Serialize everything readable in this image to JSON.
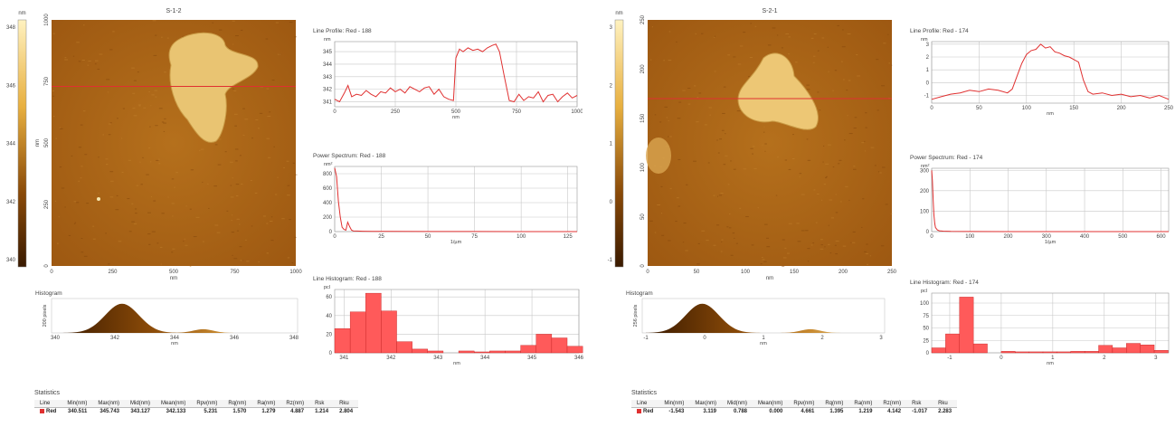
{
  "colors": {
    "profile": "#e03030",
    "histogram_bar": "#ff5a5a",
    "afm_dark": "#3a1a00",
    "afm_light": "#fff2c0",
    "grid": "#c8c8c8"
  },
  "panels": [
    {
      "image": {
        "title": "S-1-2",
        "x_unit": "nm",
        "y_unit": "nm",
        "x_ticks": [
          "0",
          "250",
          "500",
          "750",
          "1000"
        ],
        "y_ticks": [
          "0",
          "250",
          "500",
          "750",
          "1000"
        ],
        "line_fraction": 0.27
      },
      "colorbar": {
        "unit": "nm",
        "ticks": [
          "348",
          "346",
          "344",
          "342",
          "340"
        ]
      },
      "histogram": {
        "title": "Histogram",
        "y_label": "200 pixels",
        "x_unit": "nm",
        "x_ticks": [
          "340",
          "342",
          "344",
          "346",
          "348"
        ]
      },
      "charts": [
        {
          "type": "line",
          "title": "Line Profile: Red - 188",
          "y_unit": "nm",
          "xlabel": "nm",
          "xlim": [
            0,
            1000
          ],
          "ylim": [
            340.6,
            345.8
          ],
          "y_ticks": [
            341,
            342,
            343,
            344,
            345
          ],
          "x_ticks": [
            0,
            250,
            500,
            750,
            1000
          ],
          "series": [
            {
              "x": [
                0,
                20,
                40,
                55,
                70,
                90,
                110,
                130,
                150,
                170,
                190,
                210,
                230,
                250,
                270,
                290,
                310,
                330,
                350,
                370,
                390,
                410,
                430,
                450,
                470,
                490,
                500,
                515,
                530,
                550,
                570,
                590,
                610,
                630,
                650,
                665,
                680,
                700,
                720,
                740,
                760,
                780,
                800,
                820,
                840,
                860,
                880,
                900,
                920,
                940,
                960,
                980,
                1000
              ],
              "y": [
                341.2,
                341.0,
                341.7,
                342.3,
                341.4,
                341.6,
                341.5,
                341.9,
                341.6,
                341.4,
                341.8,
                341.7,
                342.1,
                341.8,
                342.0,
                341.7,
                342.2,
                342.0,
                341.8,
                342.1,
                342.2,
                341.6,
                342.0,
                341.4,
                341.2,
                341.1,
                344.5,
                345.2,
                345.0,
                345.3,
                345.1,
                345.2,
                345.0,
                345.3,
                345.5,
                345.6,
                345.0,
                343.0,
                341.1,
                341.0,
                341.6,
                341.1,
                341.4,
                341.3,
                341.8,
                341.0,
                341.5,
                341.6,
                341.0,
                341.4,
                341.7,
                341.3,
                341.5
              ]
            }
          ]
        },
        {
          "type": "line",
          "title": "Power Spectrum: Red - 188",
          "y_unit": "nm²",
          "xlabel": "1/µm",
          "xlim": [
            0,
            130
          ],
          "ylim": [
            0,
            900
          ],
          "y_ticks": [
            0,
            200,
            400,
            600,
            800
          ],
          "x_ticks": [
            0,
            25,
            50,
            75,
            100,
            125
          ],
          "series": [
            {
              "x": [
                0,
                1,
                2,
                3,
                4,
                5,
                6,
                7,
                8,
                9,
                10,
                12,
                15,
                20,
                30,
                50,
                75,
                100,
                130
              ],
              "y": [
                880,
                760,
                420,
                200,
                60,
                30,
                20,
                130,
                70,
                20,
                10,
                8,
                5,
                3,
                2,
                1,
                1,
                0,
                0
              ]
            }
          ]
        },
        {
          "type": "bar",
          "title": "Line Histogram: Red - 188",
          "y_unit": "pcl",
          "xlabel": "nm",
          "xlim": [
            340.8,
            346.0
          ],
          "ylim": [
            0,
            68
          ],
          "y_ticks": [
            0,
            20,
            40,
            60
          ],
          "x_ticks": [
            341,
            342,
            343,
            344,
            345,
            346
          ],
          "bin_starts": [
            340.8,
            341.13,
            341.46,
            341.79,
            342.12,
            342.45,
            342.78,
            343.11,
            343.44,
            343.77,
            344.1,
            344.43,
            344.76,
            345.09,
            345.42,
            345.75
          ],
          "bin_width": 0.33,
          "values": [
            26,
            44,
            64,
            45,
            12,
            4,
            2,
            0,
            2,
            1,
            2,
            2,
            8,
            20,
            16,
            7
          ]
        }
      ],
      "statistics": {
        "title": "Statistics",
        "headers": [
          "Line",
          "Min(nm)",
          "Max(nm)",
          "Mid(nm)",
          "Mean(nm)",
          "Rpv(nm)",
          "Rq(nm)",
          "Ra(nm)",
          "Rz(nm)",
          "Rsk",
          "Rku"
        ],
        "row": [
          "Red",
          "340.511",
          "345.743",
          "343.127",
          "342.133",
          "5.231",
          "1.570",
          "1.279",
          "4.887",
          "1.214",
          "2.804"
        ]
      }
    },
    {
      "image": {
        "title": "S-2-1",
        "x_unit": "nm",
        "y_unit": "",
        "x_ticks": [
          "0",
          "50",
          "100",
          "150",
          "200",
          "250"
        ],
        "y_ticks": [
          "0",
          "50",
          "100",
          "150",
          "200",
          "250"
        ],
        "line_fraction": 0.32
      },
      "colorbar": {
        "unit": "nm",
        "ticks": [
          "3",
          "2",
          "1",
          "0",
          "-1"
        ]
      },
      "histogram": {
        "title": "Histogram",
        "y_label": "256 pixels",
        "x_unit": "nm",
        "x_ticks": [
          "-1",
          "0",
          "1",
          "2",
          "3"
        ]
      },
      "charts": [
        {
          "type": "line",
          "title": "Line Profile: Red - 174",
          "y_unit": "nm",
          "xlabel": "nm",
          "xlim": [
            0,
            250
          ],
          "ylim": [
            -1.6,
            3.2
          ],
          "y_ticks": [
            -1,
            0,
            1,
            2,
            3
          ],
          "x_ticks": [
            0,
            50,
            100,
            150,
            200,
            250
          ],
          "series": [
            {
              "x": [
                0,
                10,
                20,
                30,
                40,
                50,
                60,
                70,
                80,
                85,
                90,
                95,
                100,
                105,
                110,
                115,
                120,
                125,
                130,
                135,
                140,
                145,
                150,
                155,
                160,
                165,
                170,
                180,
                190,
                200,
                210,
                220,
                230,
                240,
                250
              ],
              "y": [
                -1.3,
                -1.1,
                -0.9,
                -0.8,
                -0.6,
                -0.7,
                -0.5,
                -0.6,
                -0.8,
                -0.5,
                0.5,
                1.5,
                2.2,
                2.5,
                2.6,
                3.0,
                2.7,
                2.8,
                2.4,
                2.3,
                2.1,
                2.0,
                1.8,
                1.6,
                0.2,
                -0.7,
                -0.9,
                -0.8,
                -1.0,
                -0.9,
                -1.1,
                -1.0,
                -1.2,
                -1.0,
                -1.3
              ]
            }
          ]
        },
        {
          "type": "line",
          "title": "Power Spectrum: Red - 174",
          "y_unit": "nm²",
          "xlabel": "1/µm",
          "xlim": [
            0,
            620
          ],
          "ylim": [
            0,
            310
          ],
          "y_ticks": [
            0,
            100,
            200,
            300
          ],
          "x_ticks": [
            0,
            100,
            200,
            300,
            400,
            500,
            600
          ],
          "series": [
            {
              "x": [
                0,
                2,
                4,
                6,
                8,
                10,
                15,
                20,
                30,
                50,
                100,
                200,
                300,
                400,
                500,
                620
              ],
              "y": [
                300,
                250,
                150,
                80,
                40,
                20,
                8,
                4,
                2,
                1,
                0.5,
                0,
                0,
                0,
                0,
                0
              ]
            }
          ]
        },
        {
          "type": "bar",
          "title": "Line Histogram: Red - 174",
          "y_unit": "pcl",
          "xlabel": "nm",
          "xlim": [
            -1.35,
            3.25
          ],
          "ylim": [
            0,
            120
          ],
          "y_ticks": [
            0,
            25,
            50,
            75,
            100
          ],
          "x_ticks": [
            -1,
            0,
            1,
            2,
            3
          ],
          "bin_starts": [
            -1.35,
            -1.08,
            -0.81,
            -0.54,
            -0.27,
            0.0,
            0.27,
            0.54,
            0.81,
            1.08,
            1.35,
            1.62,
            1.89,
            2.16,
            2.43,
            2.7,
            2.97
          ],
          "bin_width": 0.27,
          "values": [
            10,
            38,
            112,
            18,
            0,
            3,
            2,
            2,
            2,
            2,
            3,
            3,
            15,
            10,
            19,
            16,
            5
          ]
        }
      ],
      "statistics": {
        "title": "Statistics",
        "headers": [
          "Line",
          "Min(nm)",
          "Max(nm)",
          "Mid(nm)",
          "Mean(nm)",
          "Rpv(nm)",
          "Rq(nm)",
          "Ra(nm)",
          "Rz(nm)",
          "Rsk",
          "Rku"
        ],
        "row": [
          "Red",
          "-1.543",
          "3.119",
          "0.788",
          "0.000",
          "4.661",
          "1.395",
          "1.219",
          "4.142",
          "-1.017",
          "2.283"
        ]
      }
    }
  ]
}
